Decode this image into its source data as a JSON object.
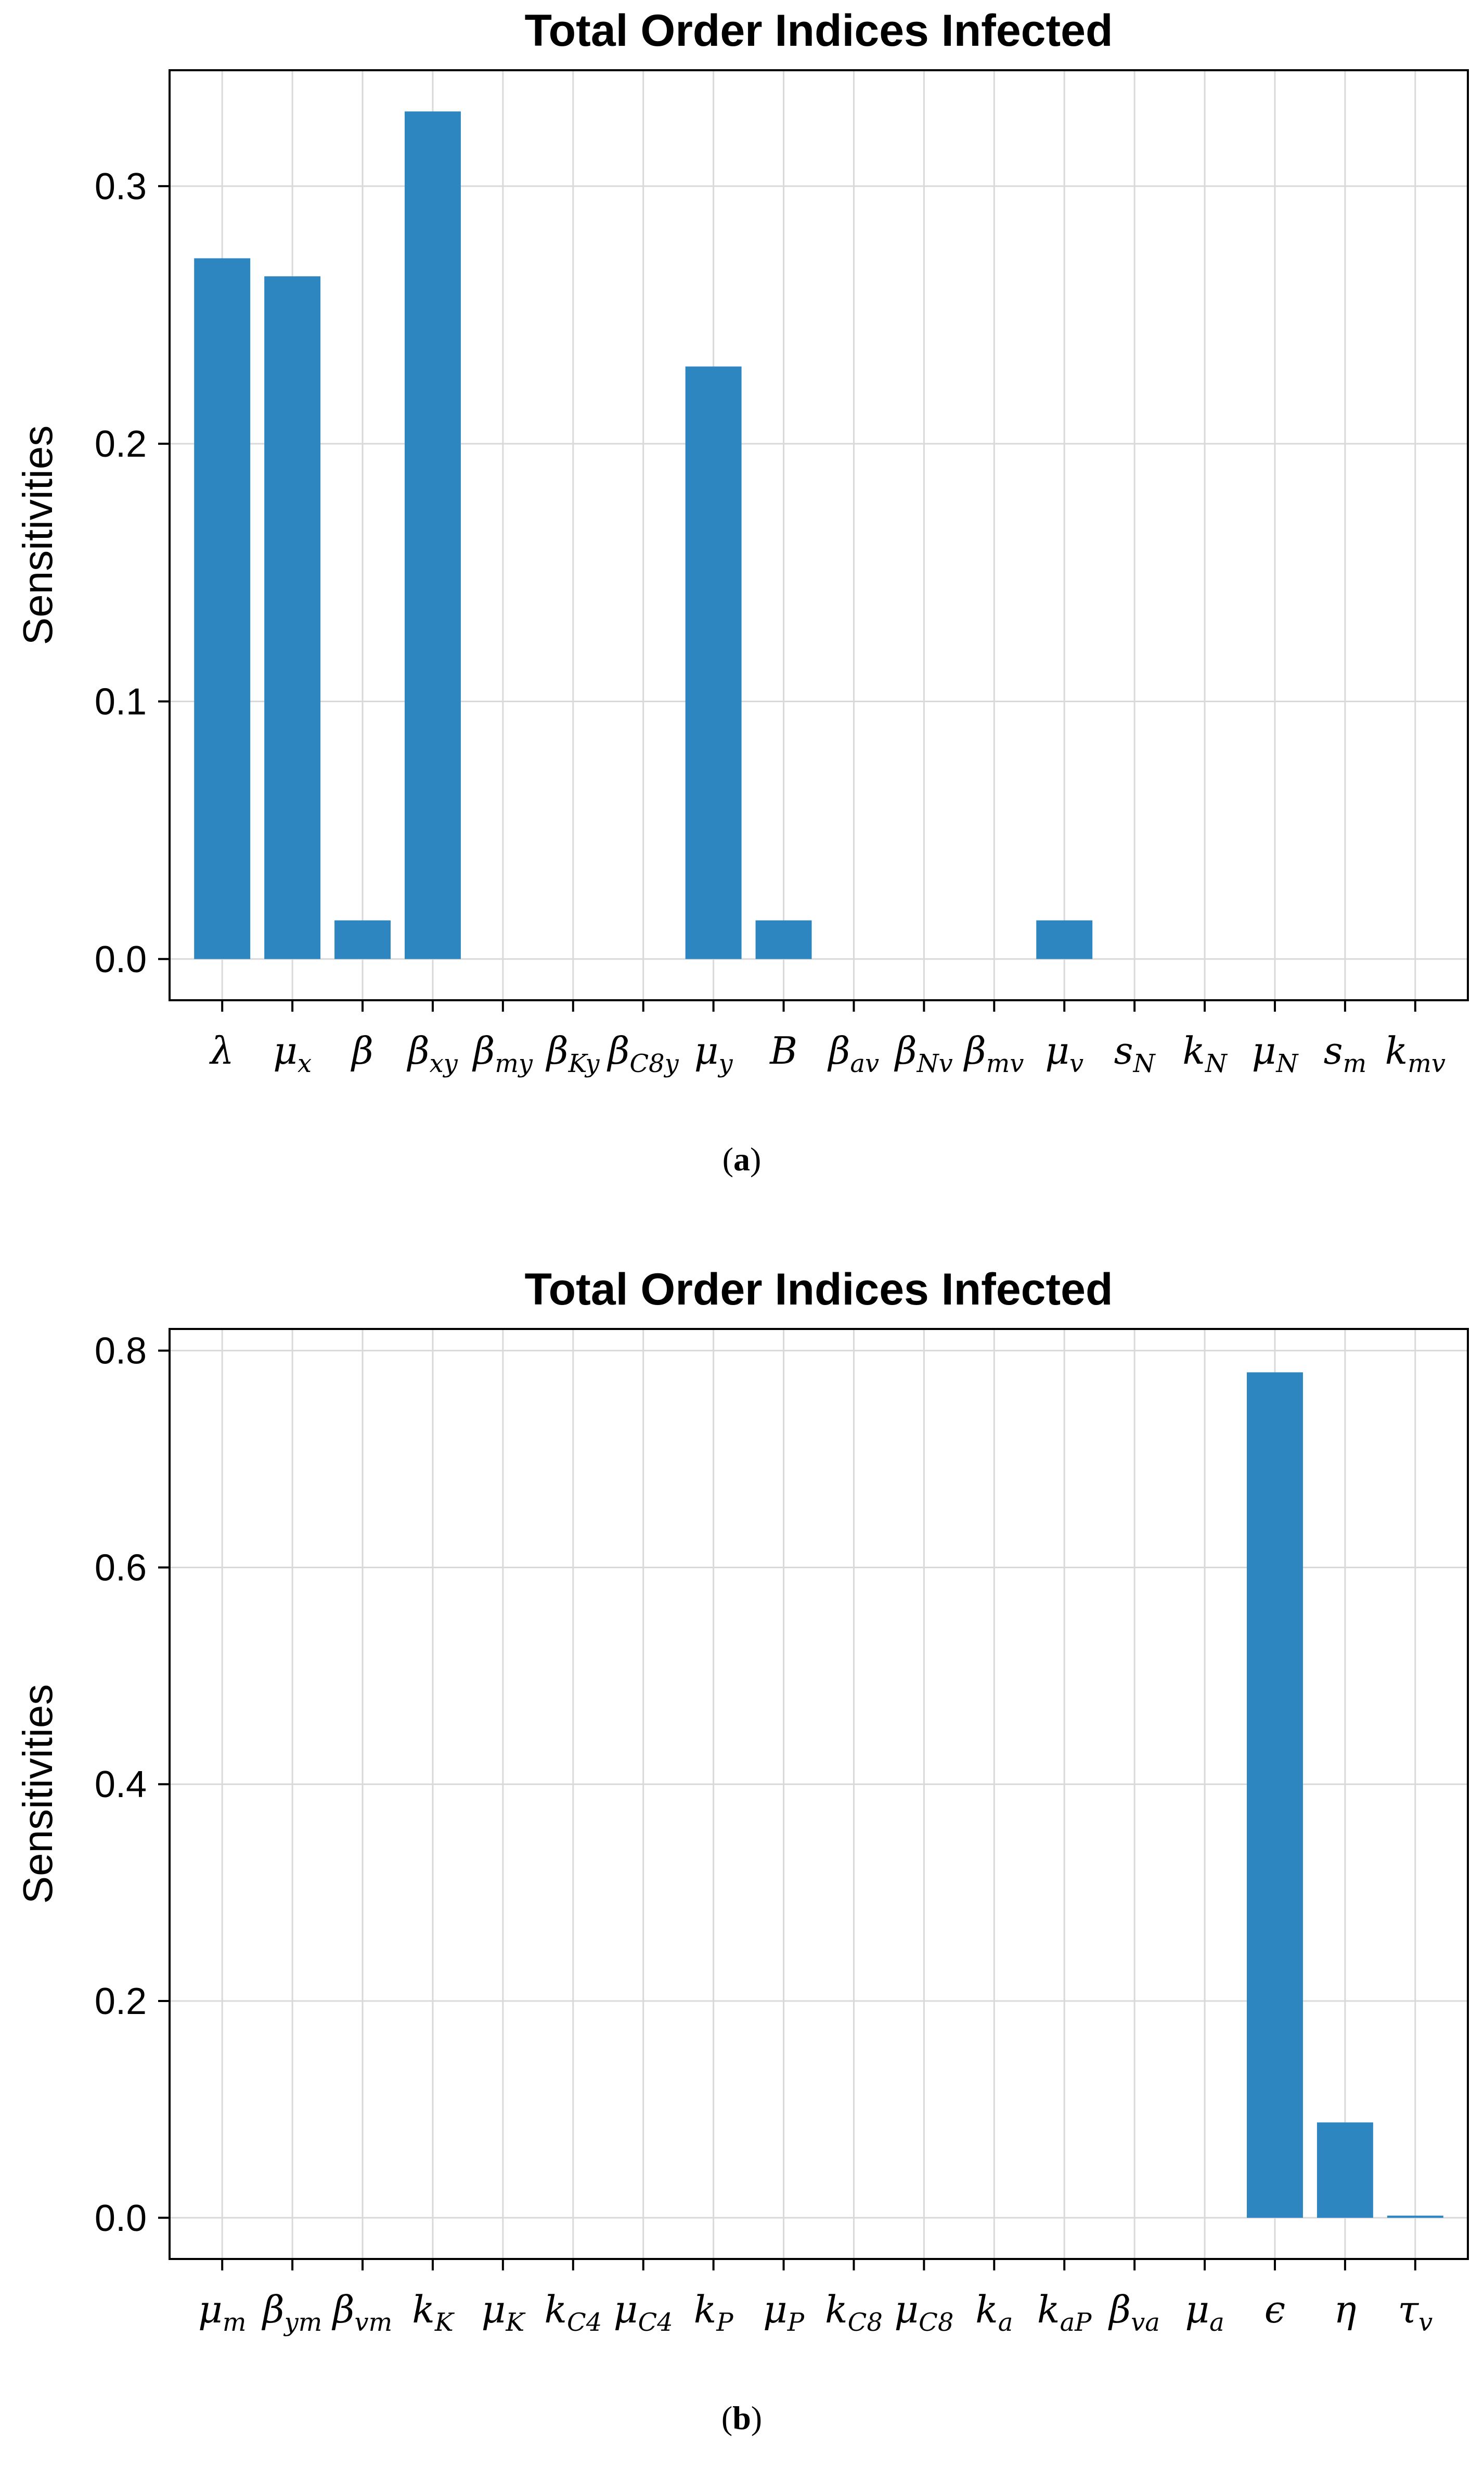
{
  "chart_data": [
    {
      "type": "bar",
      "title": "Total Order Indices Infected",
      "ylabel": "Sensitivities",
      "xlabel": "",
      "caption_letter": "a",
      "ylim": [
        -0.016,
        0.345
      ],
      "yticks": [
        0.0,
        0.1,
        0.2,
        0.3
      ],
      "ytick_labels": [
        "0.0",
        "0.1",
        "0.2",
        "0.3"
      ],
      "grid": true,
      "bar_color": "#2e86c1",
      "categories": [
        {
          "base": "λ",
          "sub": ""
        },
        {
          "base": "μ",
          "sub": "x"
        },
        {
          "base": "β",
          "sub": ""
        },
        {
          "base": "β",
          "sub": "xy"
        },
        {
          "base": "β",
          "sub": "my"
        },
        {
          "base": "β",
          "sub": "Ky"
        },
        {
          "base": "β",
          "sub": "C8y"
        },
        {
          "base": "μ",
          "sub": "y"
        },
        {
          "base": "B",
          "sub": ""
        },
        {
          "base": "β",
          "sub": "av"
        },
        {
          "base": "β",
          "sub": "Nv"
        },
        {
          "base": "β",
          "sub": "mv"
        },
        {
          "base": "μ",
          "sub": "v"
        },
        {
          "base": "s",
          "sub": "N"
        },
        {
          "base": "k",
          "sub": "N"
        },
        {
          "base": "μ",
          "sub": "N"
        },
        {
          "base": "s",
          "sub": "m"
        },
        {
          "base": "k",
          "sub": "mv"
        }
      ],
      "values": [
        0.272,
        0.265,
        0.015,
        0.329,
        0.0,
        0.0,
        0.0,
        0.23,
        0.015,
        0.0,
        0.0,
        0.0,
        0.015,
        0.0,
        0.0,
        0.0,
        0.0,
        0.0
      ]
    },
    {
      "type": "bar",
      "title": "Total Order Indices Infected",
      "ylabel": "Sensitivities",
      "xlabel": "",
      "caption_letter": "b",
      "ylim": [
        -0.038,
        0.82
      ],
      "yticks": [
        0.0,
        0.2,
        0.4,
        0.6,
        0.8
      ],
      "ytick_labels": [
        "0.0",
        "0.2",
        "0.4",
        "0.6",
        "0.8"
      ],
      "grid": true,
      "bar_color": "#2e86c1",
      "categories": [
        {
          "base": "μ",
          "sub": "m"
        },
        {
          "base": "β",
          "sub": "ym"
        },
        {
          "base": "β",
          "sub": "vm"
        },
        {
          "base": "k",
          "sub": "K"
        },
        {
          "base": "μ",
          "sub": "K"
        },
        {
          "base": "k",
          "sub": "C4"
        },
        {
          "base": "μ",
          "sub": "C4"
        },
        {
          "base": "k",
          "sub": "P"
        },
        {
          "base": "μ",
          "sub": "P"
        },
        {
          "base": "k",
          "sub": "C8"
        },
        {
          "base": "μ",
          "sub": "C8"
        },
        {
          "base": "k",
          "sub": "a"
        },
        {
          "base": "k",
          "sub": "aP"
        },
        {
          "base": "β",
          "sub": "va"
        },
        {
          "base": "μ",
          "sub": "a"
        },
        {
          "base": "ϵ",
          "sub": ""
        },
        {
          "base": "η",
          "sub": ""
        },
        {
          "base": "τ",
          "sub": "v"
        }
      ],
      "values": [
        0.0,
        0.0,
        0.0,
        0.0,
        0.0,
        0.0,
        0.0,
        0.0,
        0.0,
        0.0,
        0.0,
        0.0,
        0.0,
        0.0,
        0.0,
        0.78,
        0.088,
        0.002
      ]
    }
  ]
}
